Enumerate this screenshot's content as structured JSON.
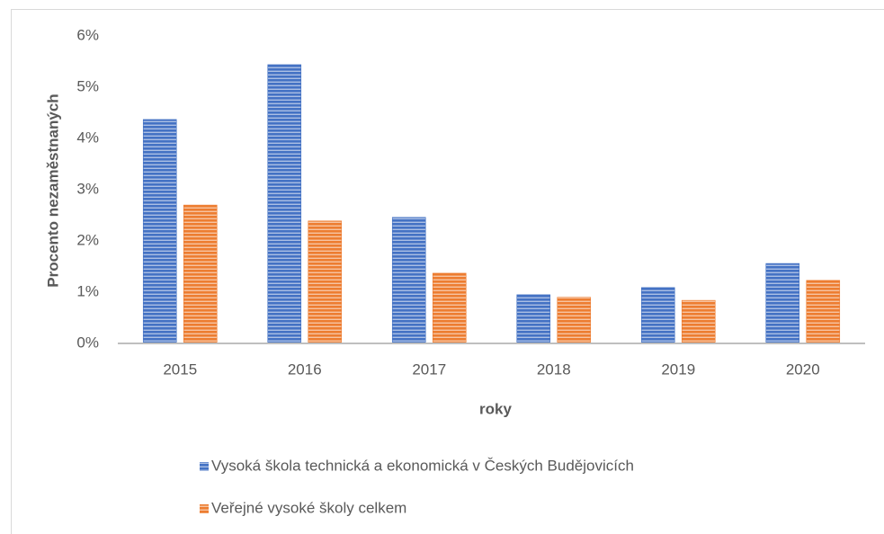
{
  "chart_data": {
    "type": "bar",
    "x_label": "roky",
    "y_label": "Procento nezaměstnaných",
    "categories": [
      "2015",
      "2016",
      "2017",
      "2018",
      "2019",
      "2020"
    ],
    "series": [
      {
        "name": "Vysoká škola technická a ekonomická v Českých Budějovicích",
        "color": "#4472c4",
        "values": [
          4.37,
          5.44,
          2.46,
          0.95,
          1.09,
          1.56
        ]
      },
      {
        "name": "Veřejné vysoké školy celkem",
        "color": "#ed7d31",
        "values": [
          2.7,
          2.39,
          1.37,
          0.9,
          0.84,
          1.23
        ]
      }
    ],
    "ylim": [
      0,
      6
    ],
    "yticks": [
      {
        "value": 0,
        "label": "0%"
      },
      {
        "value": 1,
        "label": "1%"
      },
      {
        "value": 2,
        "label": "2%"
      },
      {
        "value": 3,
        "label": "3%"
      },
      {
        "value": 4,
        "label": "4%"
      },
      {
        "value": 5,
        "label": "5%"
      },
      {
        "value": 6,
        "label": "6%"
      }
    ],
    "grid": false,
    "legend": "bottom"
  }
}
